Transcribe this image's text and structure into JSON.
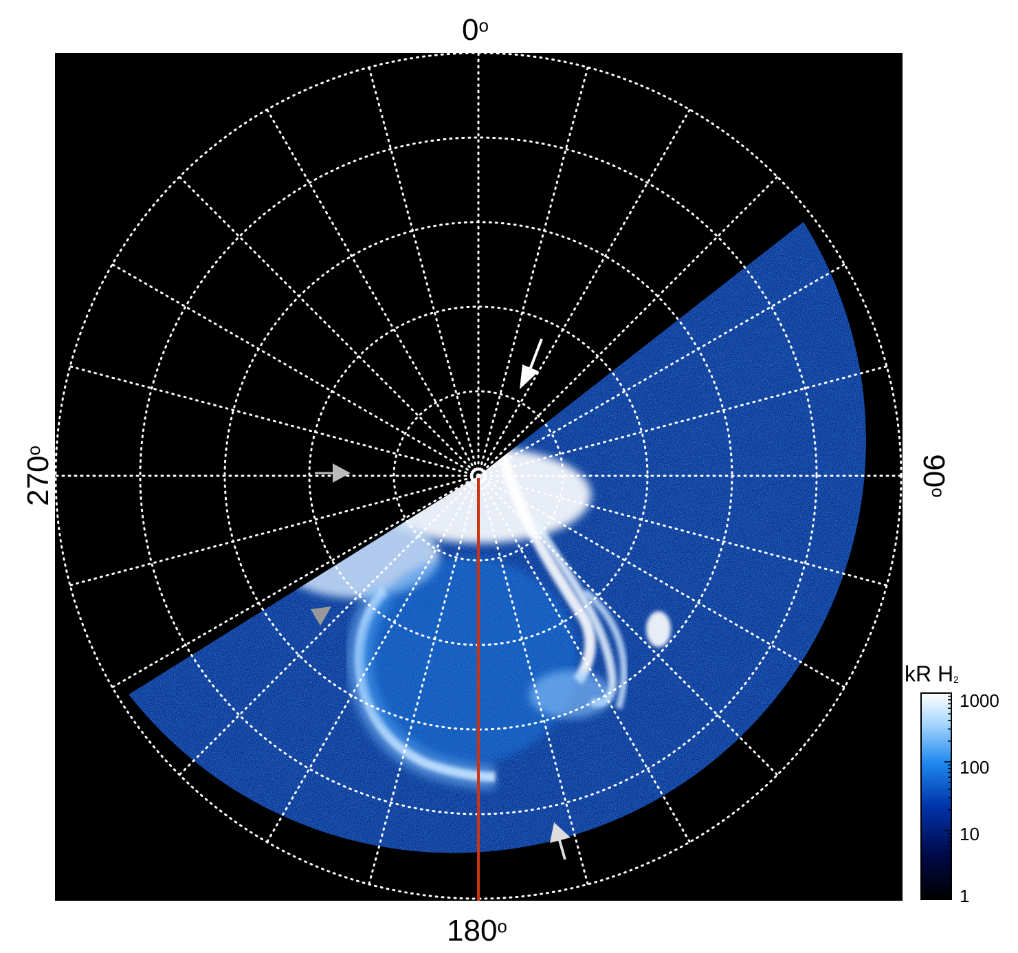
{
  "figure": {
    "labels": {
      "top": "0",
      "right": "90",
      "bottom": "180",
      "left": "270",
      "degree_symbol": "o"
    },
    "colorbar": {
      "title_main": "kR H",
      "title_sub": "2",
      "ticks": [
        "1000",
        "100",
        "10",
        "1"
      ],
      "scale": "log",
      "range": [
        1,
        1000
      ],
      "colors": [
        "#000000",
        "#000a4a",
        "#0033aa",
        "#1e88ee",
        "#a6d6ff",
        "#ffffff"
      ]
    },
    "colors": {
      "background": "#000000",
      "grid": "#ffffff",
      "meridian_line": "#cc3311",
      "arrow_white": "#ffffff",
      "arrow_gray": "#bbbbbb"
    },
    "arrows": [
      {
        "name": "white-arrow",
        "color": "white"
      },
      {
        "name": "gray-arrow-left",
        "color": "gray"
      },
      {
        "name": "gray-triangle",
        "color": "gray"
      },
      {
        "name": "gray-arrow-bottom",
        "color": "gray"
      }
    ]
  }
}
